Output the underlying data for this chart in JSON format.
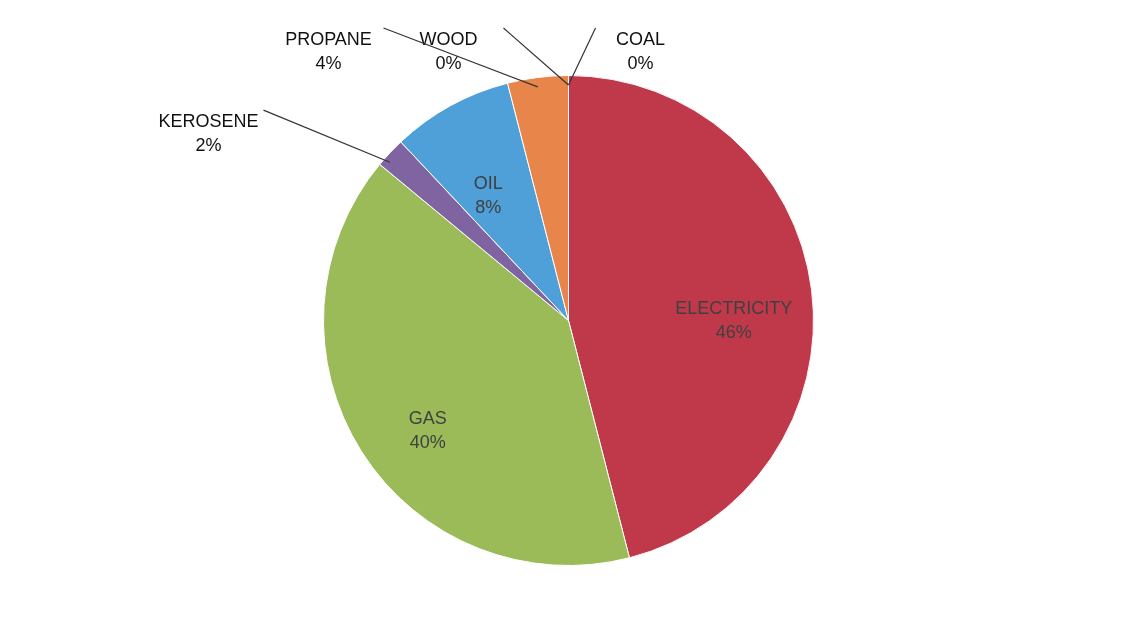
{
  "chart_data": {
    "type": "pie",
    "categories": [
      "ELECTRICITY",
      "GAS",
      "KEROSENE",
      "OIL",
      "PROPANE",
      "WOOD",
      "COAL"
    ],
    "values": [
      46,
      40,
      2,
      8,
      4,
      0,
      0
    ],
    "colors": [
      "#c0394b",
      "#9bbb59",
      "#8064a2",
      "#4f9fd8",
      "#e8854a",
      "#4bacc6",
      "#a9a9e0"
    ],
    "value_labels": [
      "46%",
      "40%",
      "2%",
      "8%",
      "4%",
      "0%",
      "0%"
    ]
  }
}
